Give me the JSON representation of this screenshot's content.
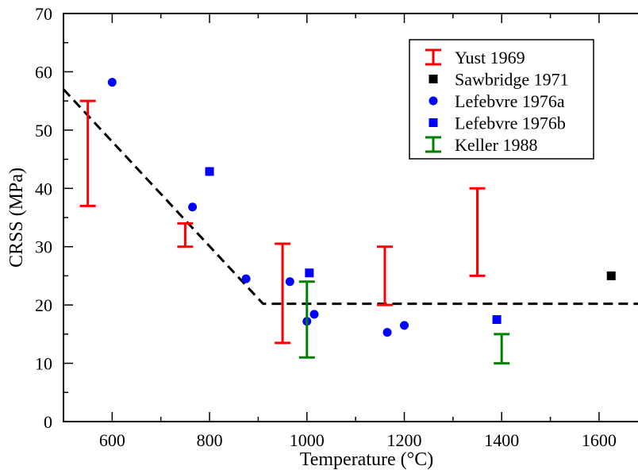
{
  "chart_data": {
    "type": "scatter",
    "xlabel": "Temperature (°C)",
    "ylabel": "CRSS (MPa)",
    "xlim": [
      500,
      1680
    ],
    "ylim": [
      0,
      70
    ],
    "x_ticks": [
      600,
      800,
      1000,
      1200,
      1400,
      1600
    ],
    "y_ticks": [
      0,
      10,
      20,
      30,
      40,
      50,
      60,
      70
    ],
    "grid": false,
    "legend_position": "top-right",
    "series": [
      {
        "name": "Yust 1969",
        "marker": "errorbar",
        "color": "#ff0000",
        "bars": [
          {
            "x": 550,
            "low": 37,
            "high": 55
          },
          {
            "x": 750,
            "low": 30,
            "high": 34
          },
          {
            "x": 950,
            "low": 13.5,
            "high": 30.5
          },
          {
            "x": 1160,
            "low": 20,
            "high": 30
          },
          {
            "x": 1350,
            "low": 25,
            "high": 40
          }
        ]
      },
      {
        "name": "Sawbridge 1971",
        "marker": "square",
        "color": "#000000",
        "points": [
          {
            "x": 1625,
            "y": 25
          }
        ]
      },
      {
        "name": "Lefebvre 1976a",
        "marker": "circle",
        "color": "#0000ff",
        "points": [
          {
            "x": 600,
            "y": 58.2
          },
          {
            "x": 765,
            "y": 36.8
          },
          {
            "x": 875,
            "y": 24.5
          },
          {
            "x": 965,
            "y": 24.0
          },
          {
            "x": 1000,
            "y": 17.2
          },
          {
            "x": 1015,
            "y": 18.4
          },
          {
            "x": 1165,
            "y": 15.3
          },
          {
            "x": 1200,
            "y": 16.5
          }
        ]
      },
      {
        "name": "Lefebvre 1976b",
        "marker": "square",
        "color": "#0000ff",
        "points": [
          {
            "x": 800,
            "y": 42.9
          },
          {
            "x": 1005,
            "y": 25.5
          },
          {
            "x": 1390,
            "y": 17.5
          }
        ]
      },
      {
        "name": "Keller 1988",
        "marker": "errorbar",
        "color": "#008000",
        "bars": [
          {
            "x": 1000,
            "low": 11,
            "high": 24
          },
          {
            "x": 1400,
            "low": 10,
            "high": 15
          }
        ]
      }
    ],
    "fit_line": {
      "style": "dashed",
      "color": "#000000",
      "points": [
        {
          "x": 500,
          "y": 57
        },
        {
          "x": 910,
          "y": 20.2
        },
        {
          "x": 1680,
          "y": 20.2
        }
      ]
    }
  }
}
